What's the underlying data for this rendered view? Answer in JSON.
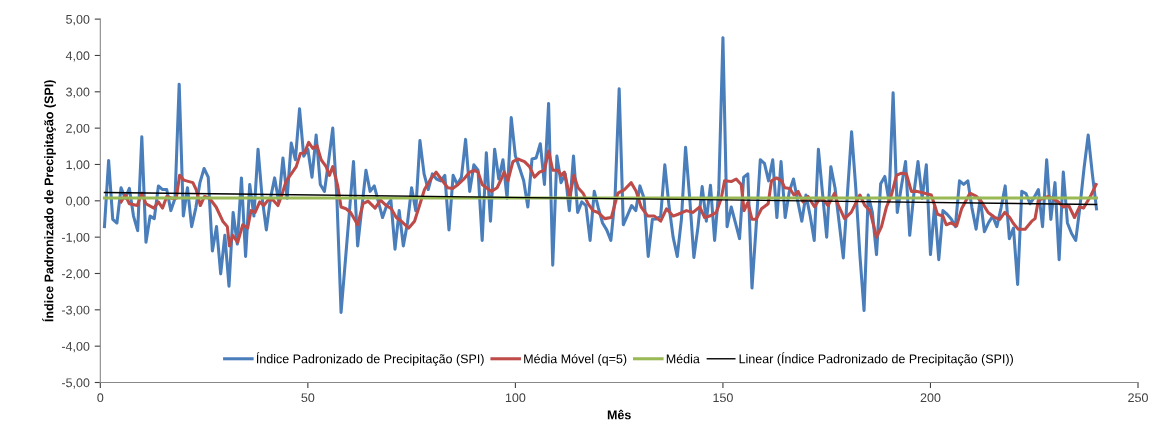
{
  "chart_data": {
    "type": "line",
    "xlabel": "Mês",
    "ylabel": "Índice Padronizado de Precipitação (SPI)",
    "xlim": [
      0,
      250
    ],
    "xticks": [
      0,
      50,
      100,
      150,
      200,
      250
    ],
    "ylim": [
      -5,
      5
    ],
    "yticks": [
      {
        "value": -5,
        "label": "-5,00"
      },
      {
        "value": -4,
        "label": "-4,00"
      },
      {
        "value": -3,
        "label": "-3,00"
      },
      {
        "value": -2,
        "label": "-2,00"
      },
      {
        "value": -1,
        "label": "-1,00"
      },
      {
        "value": 0,
        "label": "0,00"
      },
      {
        "value": 1,
        "label": "1,00"
      },
      {
        "value": 2,
        "label": "2,00"
      },
      {
        "value": 3,
        "label": "3,00"
      },
      {
        "value": 4,
        "label": "4,00"
      },
      {
        "value": 5,
        "label": "5,00"
      }
    ],
    "grid": false,
    "legend": "bottom",
    "marker": "none",
    "line_style": "solid",
    "series": [
      {
        "name": "Índice Padronizado de Precipitação (SPI)",
        "color": "#4a7ebb",
        "x": [
          1,
          2,
          3,
          4,
          5,
          6,
          7,
          8,
          9,
          10,
          11,
          12,
          13,
          14,
          15,
          16,
          17,
          18,
          19,
          20,
          21,
          22,
          23,
          24,
          25,
          26,
          27,
          28,
          29,
          30,
          31,
          32,
          33,
          34,
          35,
          36,
          37,
          38,
          39,
          40,
          41,
          42,
          43,
          44,
          45,
          46,
          47,
          48,
          49,
          50,
          51,
          52,
          53,
          54,
          55,
          56,
          57,
          58,
          59,
          60,
          61,
          62,
          63,
          64,
          65,
          66,
          67,
          68,
          69,
          70,
          71,
          72,
          73,
          74,
          75,
          76,
          77,
          78,
          79,
          80,
          81,
          82,
          83,
          84,
          85,
          86,
          87,
          88,
          89,
          90,
          91,
          92,
          93,
          94,
          95,
          96,
          97,
          98,
          99,
          100,
          101,
          102,
          103,
          104,
          105,
          106,
          107,
          108,
          109,
          110,
          111,
          112,
          113,
          114,
          115,
          116,
          117,
          118,
          119,
          120,
          121,
          122,
          123,
          124,
          125,
          126,
          127,
          128,
          129,
          130,
          131,
          132,
          133,
          134,
          135,
          136,
          137,
          138,
          139,
          140,
          141,
          142,
          143,
          144,
          145,
          146,
          147,
          148,
          149,
          150,
          151,
          152,
          153,
          154,
          155,
          156,
          157,
          158,
          159,
          160,
          161,
          162,
          163,
          164,
          165,
          166,
          167,
          168,
          169,
          170,
          171,
          172,
          173,
          174,
          175,
          176,
          177,
          178,
          179,
          180,
          181,
          182,
          183,
          184,
          185,
          186,
          187,
          188,
          189,
          190,
          191,
          192,
          193,
          194,
          195,
          196,
          197,
          198,
          199,
          200,
          201,
          202,
          203,
          204,
          205,
          206,
          207,
          208,
          209,
          210,
          211,
          212,
          213,
          214,
          215,
          216,
          217,
          218,
          219,
          220,
          221,
          222,
          223,
          224,
          225,
          226,
          227,
          228,
          229,
          230,
          231,
          232,
          233,
          234,
          235,
          236,
          237,
          238,
          239,
          240
        ],
        "values": [
          -0.71,
          1.11,
          -0.51,
          -0.61,
          0.36,
          0.07,
          0.34,
          -0.42,
          -0.82,
          1.76,
          -1.14,
          -0.42,
          -0.49,
          0.41,
          0.31,
          0.31,
          -0.27,
          0.07,
          3.21,
          -0.42,
          0.36,
          -0.71,
          -0.2,
          0.5,
          0.89,
          0.65,
          -1.38,
          -0.71,
          -2.01,
          -0.95,
          -2.35,
          -0.32,
          -1.19,
          0.63,
          -1.53,
          0.45,
          -0.42,
          1.42,
          0.07,
          -0.8,
          0.07,
          0.63,
          -0.03,
          1.18,
          0.07,
          1.59,
          1.13,
          2.53,
          1.23,
          1.42,
          0.65,
          1.81,
          0.45,
          0.26,
          1.1,
          2.0,
          0.07,
          -3.07,
          -1.7,
          -0.32,
          1.08,
          -1.24,
          -0.2,
          0.84,
          0.26,
          0.41,
          -0.03,
          -0.46,
          -0.13,
          0.02,
          -1.33,
          -0.27,
          -1.24,
          -0.61,
          0.36,
          -0.27,
          1.66,
          0.74,
          0.31,
          0.74,
          0.6,
          0.55,
          0.7,
          -0.8,
          0.7,
          0.45,
          0.65,
          1.69,
          0.26,
          0.99,
          0.84,
          -1.09,
          1.32,
          -0.56,
          1.42,
          0.6,
          1.13,
          0.07,
          2.29,
          1.23,
          0.9,
          0.55,
          -0.17,
          1.15,
          1.18,
          1.57,
          0.45,
          2.68,
          -1.77,
          1.23,
          0.5,
          0.74,
          -0.27,
          1.23,
          -0.32,
          -0.03,
          -0.13,
          -1.09,
          0.26,
          -0.2,
          -0.61,
          -0.8,
          -1.09,
          0.07,
          3.08,
          -0.66,
          -0.4,
          -0.13,
          -0.27,
          0.41,
          0.07,
          -1.53,
          -0.51,
          -0.5,
          -0.42,
          0.99,
          -0.13,
          -1.0,
          -1.53,
          -0.51,
          1.47,
          0.07,
          -1.56,
          -0.71,
          0.39,
          -0.56,
          0.43,
          -1.09,
          0.3,
          4.49,
          -0.71,
          -0.17,
          -0.6,
          -1.04,
          0.65,
          0.74,
          -2.4,
          -0.71,
          1.13,
          1.03,
          0.55,
          1.13,
          -0.46,
          1.08,
          -0.46,
          0.26,
          0.6,
          0.0,
          -0.56,
          0.16,
          -0.4,
          -1.09,
          1.42,
          0.2,
          -1.0,
          0.94,
          0.36,
          -0.6,
          -1.57,
          0.2,
          1.9,
          0.36,
          -1.5,
          -3.02,
          0.16,
          -0.32,
          -1.48,
          0.47,
          0.67,
          0.0,
          2.97,
          -0.32,
          0.4,
          1.08,
          -0.95,
          0.2,
          1.08,
          0.07,
          0.99,
          -1.48,
          -0.13,
          -1.62,
          -0.27,
          -0.37,
          -0.5,
          -0.71,
          0.55,
          0.45,
          0.55,
          -0.2,
          -0.78,
          0.07,
          -0.85,
          -0.6,
          -0.42,
          -0.71,
          -0.2,
          0.41,
          -1.04,
          -0.75,
          -2.3,
          0.26,
          0.2,
          -0.08,
          0.1,
          0.31,
          -0.71,
          1.13,
          -0.51,
          0.5,
          -1.62,
          0.79,
          -0.61,
          -0.9,
          -1.09,
          -0.17,
          0.9,
          1.81,
          0.74,
          -0.22
        ]
      },
      {
        "name": "Média Móvel (q=5)",
        "color": "#be4b48",
        "x": [
          5,
          6,
          7,
          8.9,
          10,
          11,
          12.9,
          14,
          15,
          16,
          17.2,
          18.3,
          19.1,
          20.1,
          22.3,
          23.1,
          24.1,
          25.1,
          26.3,
          27.9,
          29.5,
          30.6,
          31.1,
          31.9,
          33.1,
          34.3,
          35.5,
          36.3,
          37.3,
          38.4,
          39.4,
          40.4,
          41.6,
          42.8,
          43.6,
          44.8,
          46,
          47.2,
          48.2,
          49.2,
          50.2,
          51.2,
          52.2,
          53.2,
          54.4,
          55.2,
          56,
          57.2,
          58,
          59.2,
          60.3,
          62,
          63.3,
          64.5,
          66.2,
          67.5,
          68.9,
          70.1,
          71.3,
          72.5,
          74.3,
          75.7,
          76.9,
          78.1,
          79.6,
          80.9,
          82.1,
          83.7,
          84.9,
          86.2,
          87.6,
          89,
          90.2,
          91,
          92,
          93,
          94.2,
          95.6,
          96.6,
          97.3,
          98.2,
          99.4,
          100.6,
          102.2,
          103.4,
          104.6,
          105.8,
          107,
          108,
          109,
          110.3,
          111,
          111.8,
          113.1,
          114.1,
          115.1,
          116.3,
          117.5,
          118.7,
          119.9,
          121.5,
          123.1,
          124.7,
          126.3,
          127.9,
          129.1,
          130.3,
          131.9,
          133.5,
          135,
          136.4,
          138,
          139.2,
          141.2,
          142.8,
          144.4,
          145.6,
          146.8,
          148.4,
          149.6,
          150.4,
          152,
          153.2,
          154.4,
          155.1,
          156,
          157,
          158,
          159.3,
          160.9,
          161.7,
          162.9,
          164.1,
          164.9,
          166.1,
          167.1,
          168.1,
          169.3,
          170.5,
          172.1,
          173.3,
          174.5,
          175.3,
          176.9,
          177.7,
          179.3,
          180.9,
          183,
          184.2,
          185.4,
          187,
          188.2,
          189.4,
          190.6,
          191.8,
          193,
          194.2,
          195.4,
          196.6,
          198.6,
          200.2,
          201.7,
          203,
          203.8,
          204.9,
          206.3,
          207.5,
          209.5,
          211.1,
          212.3,
          213.9,
          215.5,
          216.7,
          217.9,
          219.1,
          219.9,
          221.1,
          222.8,
          224.4,
          225.2,
          226,
          227.2,
          228.4,
          229.6,
          230.8,
          232,
          233.3,
          234.7,
          235.9,
          236.9,
          238.7,
          239.9
        ],
        "values": [
          -0.03,
          0.16,
          -0.08,
          -0.13,
          0.21,
          -0.08,
          -0.2,
          -0.03,
          -0.2,
          0.12,
          0.07,
          0.07,
          0.7,
          0.57,
          0.5,
          0.31,
          -0.13,
          0.12,
          0.07,
          -0.17,
          -0.56,
          -0.71,
          -1.24,
          -0.95,
          -1.14,
          -0.66,
          -0.75,
          -0.27,
          -0.32,
          -0.03,
          -0.13,
          0.02,
          0.02,
          -0.13,
          0.12,
          0.55,
          0.74,
          0.94,
          1.3,
          1.32,
          1.61,
          1.44,
          1.52,
          1.13,
          0.94,
          0.7,
          0.94,
          0.41,
          -0.17,
          -0.22,
          -0.32,
          -0.66,
          -0.08,
          -0.01,
          -0.2,
          0.02,
          -0.13,
          -0.22,
          -0.46,
          -0.56,
          -0.75,
          -0.56,
          -0.13,
          0.31,
          0.6,
          0.79,
          0.6,
          0.36,
          0.34,
          0.45,
          0.6,
          0.79,
          0.84,
          0.79,
          0.45,
          0.36,
          0.26,
          0.36,
          0.6,
          0.79,
          0.55,
          1.08,
          1.15,
          1.08,
          0.94,
          0.65,
          0.79,
          0.84,
          1.37,
          0.84,
          0.84,
          0.7,
          0.79,
          0.12,
          0.7,
          0.36,
          0.21,
          -0.08,
          -0.27,
          -0.32,
          -0.49,
          -0.46,
          0.21,
          0.31,
          0.5,
          0.26,
          -0.17,
          -0.42,
          -0.42,
          -0.56,
          -0.22,
          -0.42,
          -0.37,
          -0.27,
          -0.32,
          -0.17,
          -0.46,
          -0.42,
          -0.32,
          0.07,
          0.55,
          0.53,
          0.6,
          0.45,
          -0.27,
          -0.05,
          -0.51,
          -0.51,
          -0.22,
          -0.08,
          0.55,
          0.63,
          0.55,
          0.36,
          0.34,
          0.16,
          0.26,
          -0.03,
          0.12,
          -0.17,
          0.07,
          0.0,
          -0.13,
          0.21,
          -0.1,
          -0.49,
          -0.32,
          0.16,
          -0.13,
          -0.27,
          -1.0,
          -0.71,
          -0.17,
          0.16,
          0.7,
          0.76,
          0.74,
          0.26,
          0.26,
          0.21,
          0.16,
          -0.37,
          -0.42,
          -0.66,
          -0.61,
          -0.69,
          -0.22,
          0.21,
          0.12,
          -0.03,
          -0.32,
          -0.46,
          -0.51,
          -0.32,
          -0.46,
          -0.61,
          -0.78,
          -0.78,
          -0.56,
          -0.49,
          0.02,
          0.07,
          0.12,
          0.05,
          -0.03,
          -0.17,
          -0.13,
          -0.46,
          -0.17,
          -0.2,
          0.16,
          0.45
        ]
      },
      {
        "name": "Média",
        "color": "#98b954",
        "x": [
          1,
          240
        ],
        "values": [
          0.08,
          0.08
        ]
      },
      {
        "name": "Linear (Índice Padronizado de Precipitação (SPI))",
        "color": "#000000",
        "x": [
          1,
          240
        ],
        "values": [
          0.23,
          -0.1
        ]
      }
    ]
  }
}
